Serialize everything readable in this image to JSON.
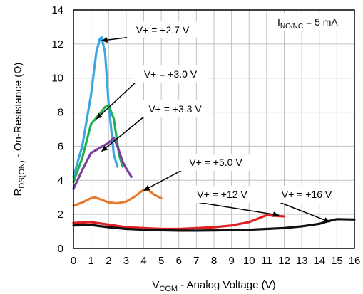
{
  "chart_data": {
    "type": "line",
    "xlabel": {
      "main": "V",
      "sub": "COM",
      "rest": " - Analog Voltage (V)"
    },
    "ylabel": {
      "main": "R",
      "sub": "DS(ON)",
      "rest": " - On-Resistance (Ω)"
    },
    "xlim": [
      0,
      16
    ],
    "ylim": [
      0,
      14
    ],
    "xticks": [
      0,
      1,
      2,
      3,
      4,
      5,
      6,
      7,
      8,
      9,
      10,
      11,
      12,
      13,
      14,
      15,
      16
    ],
    "yticks": [
      0,
      2,
      4,
      6,
      8,
      10,
      12,
      14
    ],
    "grid": true,
    "condition": {
      "main": "I",
      "sub": "NO/NC",
      "rest": " = 5 mA"
    },
    "series": [
      {
        "name": "V+ = +2.7 V",
        "color": "#3aa8e0",
        "x": [
          0,
          0.5,
          1,
          1.3,
          1.5,
          1.6,
          1.8,
          2.0,
          2.3,
          2.5
        ],
        "y": [
          4.2,
          6.0,
          9.0,
          11.5,
          12.3,
          12.4,
          11.5,
          8.5,
          5.5,
          4.8
        ]
      },
      {
        "name": "V+ = +3.0 V",
        "color": "#22b14c",
        "x": [
          0,
          0.5,
          1,
          1.5,
          1.8,
          2.0,
          2.3,
          2.6,
          2.8
        ],
        "y": [
          3.9,
          5.3,
          7.3,
          7.9,
          8.3,
          8.4,
          7.6,
          5.5,
          4.8
        ]
      },
      {
        "name": "V+ = +3.3 V",
        "color": "#7b3fa0",
        "x": [
          0,
          0.5,
          1,
          1.5,
          2.0,
          2.3,
          2.5,
          2.8,
          3.0,
          3.3
        ],
        "y": [
          3.5,
          4.6,
          5.6,
          5.9,
          6.2,
          6.5,
          6.0,
          5.1,
          4.7,
          4.2
        ]
      },
      {
        "name": "V+ = +5.0 V",
        "color": "#e87a2e",
        "x": [
          0,
          0.5,
          1,
          1.2,
          1.5,
          2,
          2.5,
          3,
          3.5,
          4,
          4.3,
          4.6,
          5
        ],
        "y": [
          2.5,
          2.7,
          2.95,
          3.0,
          2.9,
          2.7,
          2.65,
          2.75,
          3.05,
          3.45,
          3.4,
          3.15,
          2.95
        ]
      },
      {
        "name": "V+ = +12 V",
        "color": "#e02020",
        "x": [
          0,
          1,
          2,
          3,
          4,
          5,
          6,
          7,
          8,
          9,
          10,
          10.5,
          11,
          11.5,
          12
        ],
        "y": [
          1.5,
          1.55,
          1.4,
          1.25,
          1.2,
          1.15,
          1.15,
          1.2,
          1.25,
          1.35,
          1.55,
          1.75,
          1.95,
          1.92,
          1.88
        ]
      },
      {
        "name": "V+ = +16 V",
        "color": "#111111",
        "x": [
          0,
          1,
          2,
          3,
          4,
          5,
          6,
          7,
          8,
          9,
          10,
          11,
          12,
          13,
          14,
          14.5,
          15,
          16
        ],
        "y": [
          1.35,
          1.38,
          1.25,
          1.15,
          1.1,
          1.07,
          1.05,
          1.05,
          1.06,
          1.08,
          1.1,
          1.15,
          1.2,
          1.3,
          1.45,
          1.6,
          1.72,
          1.7
        ]
      }
    ]
  }
}
